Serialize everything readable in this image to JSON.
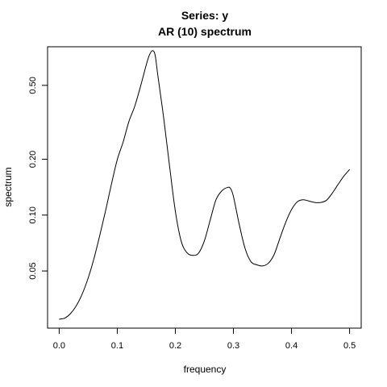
{
  "chart_data": {
    "type": "line",
    "title": "Series: y",
    "subtitle": "AR (10) spectrum",
    "xlabel": "frequency",
    "ylabel": "spectrum",
    "xlim": [
      -0.02,
      0.52
    ],
    "ylim": [
      0.0246,
      0.807
    ],
    "y_scale": "log",
    "grid": false,
    "x_ticks": [
      0.0,
      0.1,
      0.2,
      0.3,
      0.4,
      0.5
    ],
    "x_tick_labels": [
      "0.0",
      "0.1",
      "0.2",
      "0.3",
      "0.4",
      "0.5"
    ],
    "y_ticks": [
      0.05,
      0.1,
      0.2,
      0.5
    ],
    "y_tick_labels": [
      "0.05",
      "0.10",
      "0.20",
      "0.50"
    ],
    "series": [
      {
        "x": [
          0.0,
          0.01,
          0.02,
          0.03,
          0.04,
          0.05,
          0.06,
          0.07,
          0.08,
          0.09,
          0.1,
          0.11,
          0.12,
          0.13,
          0.14,
          0.15,
          0.155,
          0.16,
          0.165,
          0.17,
          0.18,
          0.19,
          0.2,
          0.21,
          0.22,
          0.23,
          0.24,
          0.25,
          0.26,
          0.27,
          0.28,
          0.29,
          0.295,
          0.3,
          0.31,
          0.32,
          0.33,
          0.34,
          0.35,
          0.36,
          0.37,
          0.38,
          0.39,
          0.4,
          0.41,
          0.42,
          0.43,
          0.44,
          0.45,
          0.46,
          0.47,
          0.48,
          0.49,
          0.5
        ],
        "values": [
          0.0275,
          0.0279,
          0.0296,
          0.0327,
          0.0378,
          0.0459,
          0.0585,
          0.078,
          0.106,
          0.147,
          0.199,
          0.247,
          0.319,
          0.385,
          0.493,
          0.646,
          0.724,
          0.768,
          0.732,
          0.562,
          0.332,
          0.184,
          0.105,
          0.0725,
          0.0627,
          0.0607,
          0.0624,
          0.0727,
          0.094,
          0.121,
          0.135,
          0.141,
          0.139,
          0.126,
          0.0891,
          0.0662,
          0.0562,
          0.054,
          0.0532,
          0.055,
          0.0612,
          0.075,
          0.0914,
          0.107,
          0.118,
          0.121,
          0.119,
          0.117,
          0.117,
          0.12,
          0.131,
          0.146,
          0.162,
          0.176
        ]
      }
    ]
  }
}
